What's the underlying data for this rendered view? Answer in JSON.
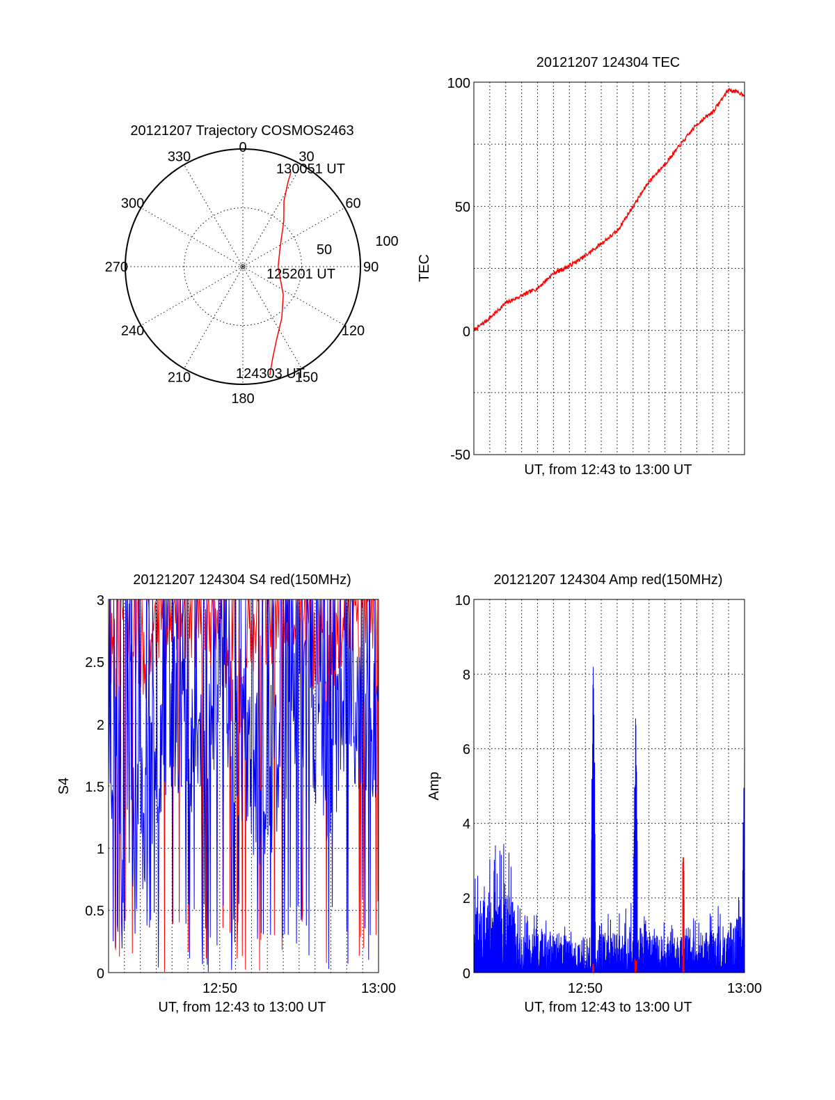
{
  "colors": {
    "red": "#ff0000",
    "blue": "#0000ff",
    "grid": "#000000",
    "background": "#ffffff"
  },
  "panels": {
    "polar": {
      "title": "20121207 Trajectory COSMOS2463",
      "azimuth_labels": [
        "0",
        "30",
        "60",
        "90",
        "120",
        "150",
        "180",
        "210",
        "240",
        "270",
        "300",
        "330"
      ],
      "ring_labels": [
        "50",
        "100"
      ],
      "annotations": {
        "start": "124303 UT",
        "middle": "125201 UT",
        "end": "130051 UT"
      }
    },
    "tec": {
      "title": "20121207 124304 TEC",
      "xlabel": "UT, from 12:43 to 13:00 UT",
      "ylabel": "TEC",
      "yticks": [
        "100",
        "50",
        "0",
        "-50"
      ]
    },
    "s4": {
      "title": "20121207 124304 S4 red(150MHz)",
      "xlabel": "UT, from 12:43 to 13:00 UT",
      "ylabel": "S4",
      "yticks": [
        "3",
        "2.5",
        "2",
        "1.5",
        "1",
        "0.5",
        "0"
      ],
      "xticks": [
        "12:50",
        "13:00"
      ]
    },
    "amp": {
      "title": "20121207 124304 Amp red(150MHz)",
      "xlabel": "UT, from 12:43 to 13:00 UT",
      "ylabel": "Amp",
      "yticks": [
        "10",
        "8",
        "6",
        "4",
        "2",
        "0"
      ],
      "xticks": [
        "12:50",
        "13:00"
      ]
    }
  },
  "chart_data": [
    {
      "type": "scatter",
      "title": "20121207 Trajectory COSMOS2463",
      "projection": "polar",
      "azimuth_deg_ticks": [
        0,
        30,
        60,
        90,
        120,
        150,
        180,
        210,
        240,
        270,
        300,
        330
      ],
      "rlim": [
        0,
        100
      ],
      "grid": true,
      "series": [
        {
          "color": "#ff0000",
          "azimuth_deg": [
            166,
            162,
            155,
            143,
            125,
            90,
            62,
            42,
            32,
            28,
            27
          ],
          "zenith_distance": [
            95,
            82,
            68,
            55,
            42,
            30,
            36,
            52,
            66,
            82,
            90
          ]
        }
      ],
      "annotations": [
        {
          "text": "124303 UT",
          "azimuth_deg": 166,
          "zenith_distance": 95
        },
        {
          "text": "125201 UT",
          "azimuth_deg": 90,
          "zenith_distance": 30
        },
        {
          "text": "130051 UT",
          "azimuth_deg": 27,
          "zenith_distance": 90
        }
      ]
    },
    {
      "type": "line",
      "title": "20121207 124304 TEC",
      "xlabel": "UT, from 12:43 to 13:00 UT",
      "ylabel": "TEC",
      "xlim": [
        "12:43",
        "13:00"
      ],
      "ylim": [
        -50,
        100
      ],
      "yticks": [
        -50,
        0,
        50,
        100
      ],
      "grid": true,
      "series": [
        {
          "color": "#ff0000",
          "x": [
            "12:43",
            "12:44",
            "12:45",
            "12:46",
            "12:47",
            "12:48",
            "12:49",
            "12:50",
            "12:51",
            "12:52",
            "12:53",
            "12:54",
            "12:55",
            "12:56",
            "12:57",
            "12:58",
            "12:59",
            "13:00"
          ],
          "y": [
            0,
            5,
            11,
            14,
            17,
            23,
            26,
            30,
            35,
            40,
            50,
            60,
            67,
            75,
            83,
            88,
            97,
            95
          ]
        }
      ]
    },
    {
      "type": "line",
      "title": "20121207 124304 S4 red(150MHz)",
      "xlabel": "UT, from 12:43 to 13:00 UT",
      "ylabel": "S4",
      "xlim": [
        "12:43",
        "13:00"
      ],
      "ylim": [
        0,
        3
      ],
      "xticks": [
        "12:50",
        "13:00"
      ],
      "yticks": [
        0,
        0.5,
        1,
        1.5,
        2,
        2.5,
        3
      ],
      "grid": true,
      "series": [
        {
          "color": "#ff0000",
          "x": [
            "12:43",
            "12:44",
            "12:45",
            "12:46",
            "12:47",
            "12:48",
            "12:49",
            "12:50",
            "12:51",
            "12:52",
            "12:53",
            "12:54",
            "12:55",
            "12:56",
            "12:57",
            "12:58",
            "12:59",
            "13:00"
          ],
          "y": [
            2.6,
            2.9,
            2.5,
            2.8,
            2.9,
            2.9,
            2.7,
            2.8,
            2.0,
            2.7,
            2.8,
            2.8,
            2.9,
            2.6,
            2.4,
            2.9,
            2.9,
            3.0
          ]
        },
        {
          "color": "#0000ff",
          "x": [
            "12:43",
            "12:44",
            "12:45",
            "12:46",
            "12:47",
            "12:48",
            "12:49",
            "12:50",
            "12:51",
            "12:52",
            "12:53",
            "12:54",
            "12:55",
            "12:56",
            "12:57",
            "12:58",
            "12:59",
            "13:00"
          ],
          "y": [
            1.9,
            1.5,
            1.2,
            1.8,
            2.2,
            2.0,
            1.8,
            2.4,
            2.0,
            1.6,
            1.5,
            2.0,
            2.5,
            1.8,
            1.7,
            2.4,
            1.8,
            2.1
          ]
        }
      ]
    },
    {
      "type": "line",
      "title": "20121207 124304 Amp red(150MHz)",
      "xlabel": "UT, from 12:43 to 13:00 UT",
      "ylabel": "Amp",
      "xlim": [
        "12:43",
        "13:00"
      ],
      "ylim": [
        0,
        10
      ],
      "xticks": [
        "12:50",
        "13:00"
      ],
      "yticks": [
        0,
        2,
        4,
        6,
        8,
        10
      ],
      "grid": true,
      "series": [
        {
          "color": "#0000ff",
          "x": [
            "12:43",
            "12:44",
            "12:45",
            "12:46",
            "12:47",
            "12:48",
            "12:49",
            "12:50",
            "12:50:30",
            "12:51",
            "12:52",
            "12:53",
            "12:53:10",
            "12:54",
            "12:55",
            "12:56",
            "12:57",
            "12:58",
            "12:59",
            "12:59:50",
            "13:00"
          ],
          "y": [
            1.6,
            2.0,
            2.4,
            1.0,
            1.1,
            1.0,
            0.9,
            0.6,
            8.8,
            1.0,
            1.0,
            1.2,
            7.3,
            1.0,
            0.9,
            0.9,
            1.0,
            1.1,
            1.2,
            1.4,
            6.4
          ]
        },
        {
          "color": "#ff0000",
          "x": [
            "12:50:30",
            "12:53:10",
            "12:56:10"
          ],
          "y": [
            0.3,
            0.4,
            3.2
          ]
        }
      ]
    }
  ]
}
